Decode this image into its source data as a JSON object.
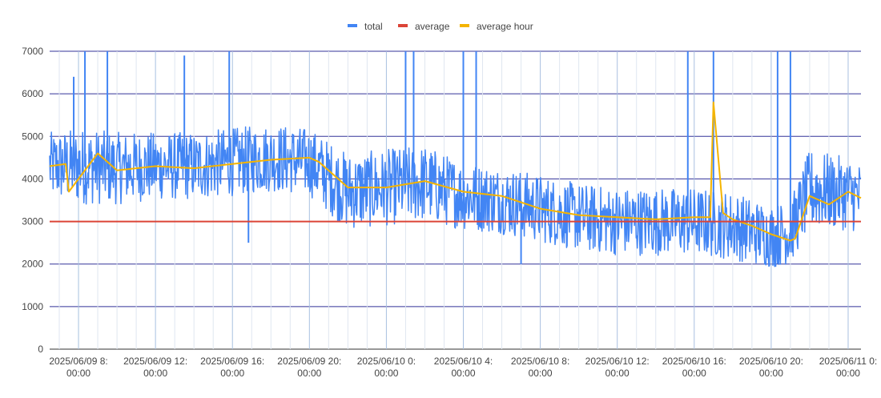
{
  "chart_data": {
    "type": "line",
    "legend_position": "top",
    "grid": true,
    "ylim": [
      0,
      7000
    ],
    "y_ticks": [
      "0",
      "1000",
      "2000",
      "3000",
      "4000",
      "5000",
      "6000",
      "7000"
    ],
    "x_ticks": [
      {
        "line1": "2025/06/09 8:",
        "line2": "00:00"
      },
      {
        "line1": "2025/06/09 12:",
        "line2": "00:00"
      },
      {
        "line1": "2025/06/09 16:",
        "line2": "00:00"
      },
      {
        "line1": "2025/06/09 20:",
        "line2": "00:00"
      },
      {
        "line1": "2025/06/10 0:",
        "line2": "00:00"
      },
      {
        "line1": "2025/06/10 4:",
        "line2": "00:00"
      },
      {
        "line1": "2025/06/10 8:",
        "line2": "00:00"
      },
      {
        "line1": "2025/06/10 12:",
        "line2": "00:00"
      },
      {
        "line1": "2025/06/10 16:",
        "line2": "00:00"
      },
      {
        "line1": "2025/06/10 20:",
        "line2": "00:00"
      },
      {
        "line1": "2025/06/11 0:",
        "line2": "00:00"
      }
    ],
    "x_range": [
      "2025/06/09 6:30",
      "2025/06/11 0:40"
    ],
    "series": [
      {
        "name": "total",
        "color": "#4285f4",
        "x": [
          "2025/06/09 6:30",
          "2025/06/09 8:00",
          "2025/06/09 10:00",
          "2025/06/09 12:00",
          "2025/06/09 14:00",
          "2025/06/09 16:00",
          "2025/06/09 18:00",
          "2025/06/09 20:00",
          "2025/06/09 22:00",
          "2025/06/10 0:00",
          "2025/06/10 2:00",
          "2025/06/10 4:00",
          "2025/06/10 6:00",
          "2025/06/10 8:00",
          "2025/06/10 10:00",
          "2025/06/10 12:00",
          "2025/06/10 14:00",
          "2025/06/10 16:00",
          "2025/06/10 18:00",
          "2025/06/10 20:00",
          "2025/06/10 21:00",
          "2025/06/10 22:00",
          "2025/06/11 0:00",
          "2025/06/11 0:40"
        ],
        "values": [
          4300,
          4300,
          4200,
          4300,
          4300,
          4400,
          4500,
          4400,
          3700,
          3800,
          3900,
          3600,
          3500,
          3300,
          3100,
          3000,
          3000,
          3000,
          2900,
          2600,
          2700,
          3700,
          3650,
          3550
        ],
        "band_low": [
          3500,
          3400,
          3400,
          3500,
          3500,
          3600,
          3700,
          3600,
          2800,
          2900,
          3000,
          2800,
          2700,
          2500,
          2300,
          2200,
          2200,
          2200,
          2100,
          1900,
          2000,
          2800,
          2800,
          2700
        ],
        "band_high": [
          5100,
          5200,
          5100,
          5100,
          5100,
          5200,
          5300,
          5200,
          4600,
          4700,
          4800,
          4400,
          4300,
          4100,
          3900,
          3800,
          3800,
          3800,
          3700,
          3400,
          3500,
          4700,
          4500,
          4400
        ],
        "spikes": [
          {
            "x": "2025/06/09 7:45",
            "y": 6400
          },
          {
            "x": "2025/06/09 8:20",
            "y": 7000
          },
          {
            "x": "2025/06/09 9:30",
            "y": 7000
          },
          {
            "x": "2025/06/09 13:30",
            "y": 6900
          },
          {
            "x": "2025/06/09 15:50",
            "y": 7000
          },
          {
            "x": "2025/06/09 16:50",
            "y": 2500
          },
          {
            "x": "2025/06/10 1:00",
            "y": 7000
          },
          {
            "x": "2025/06/10 1:25",
            "y": 7000
          },
          {
            "x": "2025/06/10 4:00",
            "y": 7000
          },
          {
            "x": "2025/06/10 4:40",
            "y": 7000
          },
          {
            "x": "2025/06/10 7:00",
            "y": 2000
          },
          {
            "x": "2025/06/10 15:40",
            "y": 7000
          },
          {
            "x": "2025/06/10 17:00",
            "y": 7000
          },
          {
            "x": "2025/06/10 20:20",
            "y": 7000
          },
          {
            "x": "2025/06/10 21:00",
            "y": 7000
          }
        ]
      },
      {
        "name": "average",
        "color": "#db4437",
        "x": [
          "2025/06/09 6:30",
          "2025/06/11 0:40"
        ],
        "values": [
          3000,
          3000
        ]
      },
      {
        "name": "average hour",
        "color": "#f4b400",
        "x": [
          "2025/06/09 6:30",
          "2025/06/09 7:20",
          "2025/06/09 7:30",
          "2025/06/09 8:00",
          "2025/06/09 9:00",
          "2025/06/09 10:00",
          "2025/06/09 12:00",
          "2025/06/09 14:00",
          "2025/06/09 16:00",
          "2025/06/09 18:00",
          "2025/06/09 20:00",
          "2025/06/09 20:30",
          "2025/06/09 22:00",
          "2025/06/10 0:00",
          "2025/06/10 2:00",
          "2025/06/10 4:00",
          "2025/06/10 6:00",
          "2025/06/10 8:00",
          "2025/06/10 10:00",
          "2025/06/10 12:00",
          "2025/06/10 14:00",
          "2025/06/10 16:00",
          "2025/06/10 16:50",
          "2025/06/10 17:00",
          "2025/06/10 17:30",
          "2025/06/10 18:00",
          "2025/06/10 19:00",
          "2025/06/10 20:00",
          "2025/06/10 21:00",
          "2025/06/10 21:15",
          "2025/06/10 22:00",
          "2025/06/10 23:00",
          "2025/06/11 0:00",
          "2025/06/11 0:40"
        ],
        "values": [
          4300,
          4350,
          3700,
          4000,
          4600,
          4200,
          4300,
          4250,
          4350,
          4450,
          4500,
          4400,
          3800,
          3800,
          3950,
          3700,
          3600,
          3300,
          3150,
          3100,
          3050,
          3100,
          3100,
          5800,
          3200,
          3050,
          2900,
          2700,
          2550,
          2600,
          3600,
          3400,
          3700,
          3550
        ]
      }
    ]
  }
}
